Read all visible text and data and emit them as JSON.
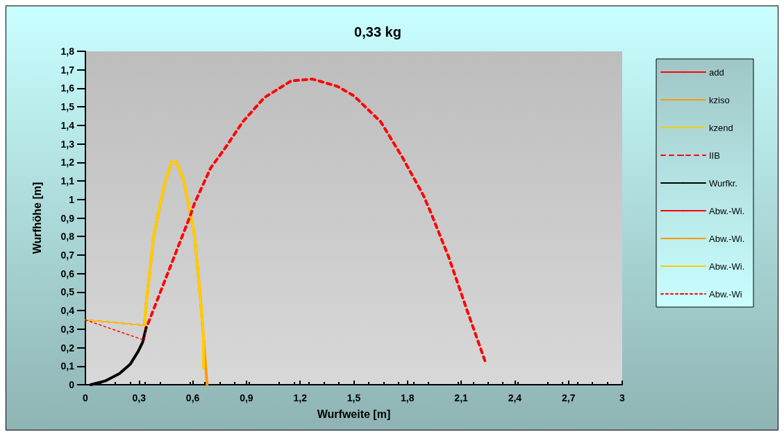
{
  "chart_data": {
    "type": "line",
    "title": "0,33 kg",
    "xlabel": "Wurfweite [m]",
    "ylabel": "Wurfhöhe [m]",
    "xlim": [
      0,
      3
    ],
    "ylim": [
      0,
      1.8
    ],
    "xticks": [
      0,
      {
        "value": 0.3,
        "label": "0,3"
      },
      {
        "value": 0.6,
        "label": "0,6"
      },
      {
        "value": 0.9,
        "label": "0,9"
      },
      {
        "value": 1.2,
        "label": "1,2"
      },
      {
        "value": 1.5,
        "label": "1,5"
      },
      {
        "value": 1.8,
        "label": "1,8"
      },
      {
        "value": 2.1,
        "label": "2,1"
      },
      {
        "value": 2.4,
        "label": "2,4"
      },
      {
        "value": 2.7,
        "label": "2,7"
      },
      3
    ],
    "yticks": [
      0,
      {
        "value": 0.1,
        "label": "0,1"
      },
      {
        "value": 0.2,
        "label": "0,2"
      },
      {
        "value": 0.3,
        "label": "0,3"
      },
      {
        "value": 0.4,
        "label": "0,4"
      },
      {
        "value": 0.5,
        "label": "0,5"
      },
      {
        "value": 0.6,
        "label": "0,6"
      },
      {
        "value": 0.7,
        "label": "0,7"
      },
      {
        "value": 0.8,
        "label": "0,8"
      },
      {
        "value": 0.9,
        "label": "0,9"
      },
      1,
      {
        "value": 1.1,
        "label": "1,1"
      },
      {
        "value": 1.2,
        "label": "1,2"
      },
      {
        "value": 1.3,
        "label": "1,3"
      },
      {
        "value": 1.4,
        "label": "1,4"
      },
      {
        "value": 1.5,
        "label": "1,5"
      },
      {
        "value": 1.6,
        "label": "1,6"
      },
      {
        "value": 1.7,
        "label": "1,7"
      },
      {
        "value": 1.8,
        "label": "1,8"
      }
    ],
    "grid": false,
    "legend": "right",
    "marker": "none",
    "series": [
      {
        "name": "add",
        "color": "#ff0000",
        "line_style": "solid"
      },
      {
        "name": "kziso",
        "color": "#ff9900",
        "line_style": "solid",
        "x": [
          0.33,
          0.34,
          0.36,
          0.38,
          0.41,
          0.445,
          0.48,
          0.51,
          0.55,
          0.585,
          0.61,
          0.64,
          0.66,
          0.68
        ],
        "values": [
          0.32,
          0.44,
          0.61,
          0.79,
          0.94,
          1.09,
          1.2,
          1.2,
          1.1,
          0.93,
          0.8,
          0.5,
          0.25,
          0
        ]
      },
      {
        "name": "kzend",
        "color": "#ffcc00",
        "line_style": "solid",
        "x": [
          0.33,
          0.34,
          0.36,
          0.38,
          0.41,
          0.445,
          0.48,
          0.51,
          0.55,
          0.585,
          0.61,
          0.64,
          0.66,
          0.66
        ],
        "values": [
          0.32,
          0.44,
          0.61,
          0.79,
          0.94,
          1.09,
          1.2,
          1.2,
          1.1,
          0.93,
          0.8,
          0.5,
          0.25,
          0.09
        ]
      },
      {
        "name": "IIB",
        "color": "#ff0000",
        "line_style": "dashed",
        "x": [
          0.35,
          0.585,
          0.61,
          0.7,
          0.79,
          0.88,
          1.0,
          1.15,
          1.27,
          1.41,
          1.5,
          1.65,
          1.77,
          1.89,
          1.93,
          2.03,
          2.13,
          2.24
        ],
        "values": [
          0.33,
          0.91,
          0.98,
          1.17,
          1.29,
          1.42,
          1.55,
          1.64,
          1.65,
          1.61,
          1.56,
          1.42,
          1.23,
          1.02,
          0.93,
          0.69,
          0.41,
          0.11
        ]
      },
      {
        "name": "Wurfkr.",
        "color": "#000000",
        "line_style": "solid",
        "x": [
          0.03,
          0.11,
          0.19,
          0.25,
          0.295,
          0.32,
          0.34
        ],
        "values": [
          0,
          0.02,
          0.06,
          0.11,
          0.18,
          0.23,
          0.31
        ]
      },
      {
        "name": "Abw.-Wi.",
        "color": "#ff0000",
        "line_style": "solid",
        "x": [
          0,
          0.34
        ],
        "values": [
          0.35,
          0.32
        ]
      },
      {
        "name": "Abw.-Wi.",
        "color": "#ff9900",
        "line_style": "solid",
        "x": [
          0,
          0.34
        ],
        "values": [
          0.35,
          0.32
        ]
      },
      {
        "name": "Abw.-Wi.",
        "color": "#ffcc00",
        "line_style": "solid",
        "x": [
          0,
          0.34
        ],
        "values": [
          0.35,
          0.32
        ]
      },
      {
        "name": "Abw.-Wi",
        "color": "#ff0000",
        "line_style": "dotted",
        "x": [
          0,
          0.33,
          0.34
        ],
        "values": [
          0.35,
          0.24,
          0.3
        ]
      }
    ]
  }
}
